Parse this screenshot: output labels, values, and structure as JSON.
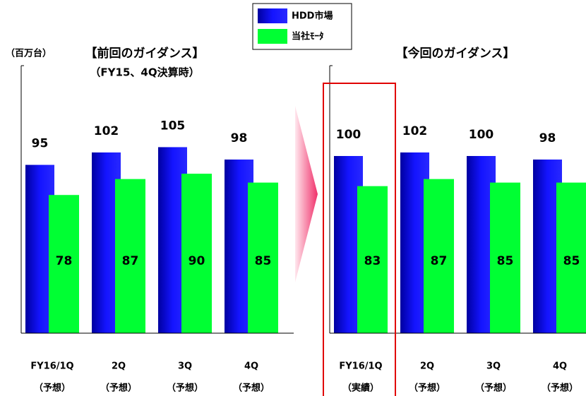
{
  "chart_data": [
    {
      "type": "bar",
      "title": "【前回のガイダンス】",
      "subtitle": "（FY15、4Q決算時）",
      "y_label": "（百万台）",
      "categories": [
        "FY16/1Q",
        "2Q",
        "3Q",
        "4Q"
      ],
      "category_notes": [
        "（予想）",
        "（予想）",
        "（予想）",
        "（予想）"
      ],
      "series": [
        {
          "name": "HDD市場",
          "color": "#1010f0",
          "values": [
            95,
            102,
            105,
            98
          ]
        },
        {
          "name": "当社ﾓｰﾀ",
          "color": "#00ff33",
          "values": [
            78,
            87,
            90,
            85
          ]
        }
      ],
      "ylim": [
        0,
        151
      ],
      "legend": "top"
    },
    {
      "type": "bar",
      "title": "【今回のガイダンス】",
      "categories": [
        "FY16/1Q",
        "2Q",
        "3Q",
        "4Q"
      ],
      "category_notes": [
        "（実績）",
        "（予想）",
        "（予想）",
        "（予想）"
      ],
      "series": [
        {
          "color": "#1010f0",
          "values": [
            100,
            102,
            100,
            98
          ]
        },
        {
          "color": "#00ff33",
          "values": [
            83,
            87,
            85,
            85
          ]
        }
      ],
      "ylim": [
        0,
        151
      ],
      "highlight": 0
    }
  ]
}
